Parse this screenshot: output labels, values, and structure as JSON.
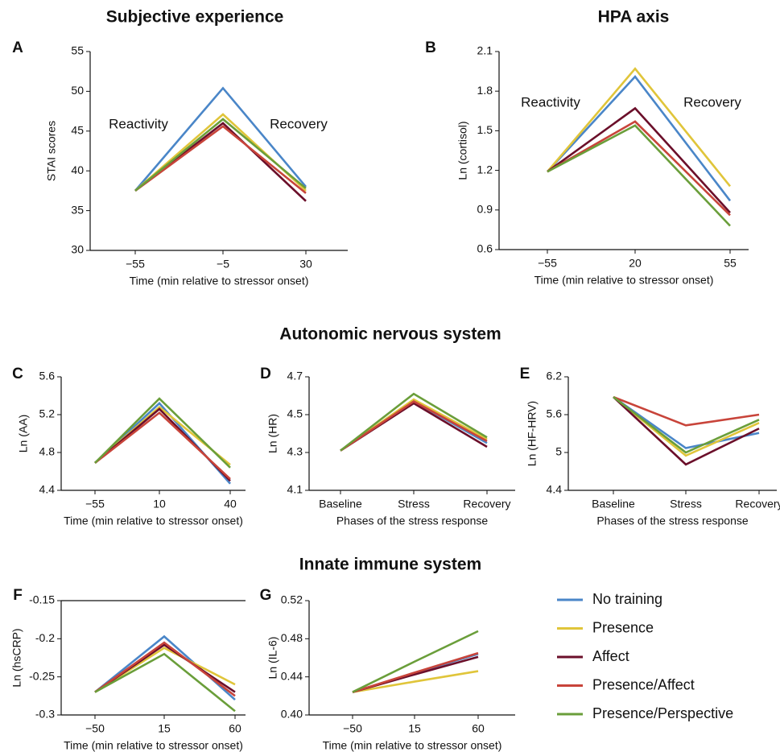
{
  "headings": [
    "Autonomic nervous system",
    "Innate immune system"
  ],
  "chart_data": [
    {
      "type": "line",
      "label": "A",
      "title": "Subjective experience",
      "xlabel": "Time (min relative to stressor onset)",
      "ylabel": "STAI scores",
      "annotations": [
        "Reactivity",
        "Recovery"
      ],
      "categories": [
        "−55",
        "−5",
        "30"
      ],
      "ylim": [
        30,
        55
      ],
      "yticks": [
        30,
        35,
        40,
        45,
        50,
        55
      ],
      "series": [
        {
          "name": "No training",
          "color": "#4a86c8",
          "values": [
            37.5,
            50.4,
            38.0
          ]
        },
        {
          "name": "Presence",
          "color": "#e0c53a",
          "values": [
            37.5,
            47.1,
            37.5
          ]
        },
        {
          "name": "Affect",
          "color": "#6b0f2a",
          "values": [
            37.5,
            46.0,
            36.2
          ]
        },
        {
          "name": "Presence/Affect",
          "color": "#c8443a",
          "values": [
            37.5,
            45.6,
            37.2
          ]
        },
        {
          "name": "Presence/Perspective",
          "color": "#6a9e3a",
          "values": [
            37.5,
            46.5,
            37.8
          ]
        }
      ]
    },
    {
      "type": "line",
      "label": "B",
      "title": "HPA axis",
      "xlabel": "Time (min relative to stressor onset)",
      "ylabel": "Ln (cortisol)",
      "annotations": [
        "Reactivity",
        "Recovery"
      ],
      "categories": [
        "−55",
        "20",
        "55"
      ],
      "ylim": [
        0.6,
        2.1
      ],
      "yticks": [
        0.6,
        0.9,
        1.2,
        1.5,
        1.8,
        2.1
      ],
      "series": [
        {
          "name": "No training",
          "color": "#4a86c8",
          "values": [
            1.19,
            1.91,
            0.97
          ]
        },
        {
          "name": "Presence",
          "color": "#e0c53a",
          "values": [
            1.19,
            1.97,
            1.08
          ]
        },
        {
          "name": "Affect",
          "color": "#6b0f2a",
          "values": [
            1.19,
            1.67,
            0.88
          ]
        },
        {
          "name": "Presence/Affect",
          "color": "#c8443a",
          "values": [
            1.19,
            1.57,
            0.86
          ]
        },
        {
          "name": "Presence/Perspective",
          "color": "#6a9e3a",
          "values": [
            1.19,
            1.54,
            0.78
          ]
        }
      ]
    },
    {
      "type": "line",
      "label": "C",
      "xlabel": "Time (min relative to stressor onset)",
      "ylabel": "Ln (AA)",
      "categories": [
        "−55",
        "10",
        "40"
      ],
      "ylim": [
        4.4,
        5.6
      ],
      "yticks": [
        4.4,
        4.8,
        5.2,
        5.6
      ],
      "series": [
        {
          "name": "No training",
          "color": "#4a86c8",
          "values": [
            4.69,
            5.32,
            4.47
          ]
        },
        {
          "name": "Presence",
          "color": "#e0c53a",
          "values": [
            4.69,
            5.28,
            4.67
          ]
        },
        {
          "name": "Affect",
          "color": "#6b0f2a",
          "values": [
            4.69,
            5.26,
            4.5
          ]
        },
        {
          "name": "Presence/Affect",
          "color": "#c8443a",
          "values": [
            4.69,
            5.22,
            4.52
          ]
        },
        {
          "name": "Presence/Perspective",
          "color": "#6a9e3a",
          "values": [
            4.69,
            5.37,
            4.64
          ]
        }
      ]
    },
    {
      "type": "line",
      "label": "D",
      "xlabel": "Phases of the stress response",
      "ylabel": "Ln (HR)",
      "categories": [
        "Baseline",
        "Stress",
        "Recovery"
      ],
      "ylim": [
        4.1,
        4.7
      ],
      "yticks": [
        4.1,
        4.3,
        4.5,
        4.7
      ],
      "series": [
        {
          "name": "No training",
          "color": "#4a86c8",
          "values": [
            4.31,
            4.57,
            4.35
          ]
        },
        {
          "name": "Presence",
          "color": "#e0c53a",
          "values": [
            4.31,
            4.58,
            4.37
          ]
        },
        {
          "name": "Affect",
          "color": "#6b0f2a",
          "values": [
            4.31,
            4.56,
            4.33
          ]
        },
        {
          "name": "Presence/Affect",
          "color": "#c8443a",
          "values": [
            4.31,
            4.57,
            4.36
          ]
        },
        {
          "name": "Presence/Perspective",
          "color": "#6a9e3a",
          "values": [
            4.31,
            4.61,
            4.38
          ]
        }
      ]
    },
    {
      "type": "line",
      "label": "E",
      "xlabel": "Phases of the stress response",
      "ylabel": "Ln (HF-HRV)",
      "categories": [
        "Baseline",
        "Stress",
        "Recovery"
      ],
      "ylim": [
        4.4,
        6.2
      ],
      "yticks": [
        4.4,
        5,
        5.6,
        6.2
      ],
      "series": [
        {
          "name": "No training",
          "color": "#4a86c8",
          "values": [
            5.88,
            5.07,
            5.31
          ]
        },
        {
          "name": "Presence",
          "color": "#e0c53a",
          "values": [
            5.88,
            4.95,
            5.47
          ]
        },
        {
          "name": "Affect",
          "color": "#6b0f2a",
          "values": [
            5.88,
            4.81,
            5.38
          ]
        },
        {
          "name": "Presence/Affect",
          "color": "#c8443a",
          "values": [
            5.88,
            5.43,
            5.6
          ]
        },
        {
          "name": "Presence/Perspective",
          "color": "#6a9e3a",
          "values": [
            5.88,
            5.0,
            5.52
          ]
        }
      ]
    },
    {
      "type": "line",
      "label": "F",
      "xlabel": "Time (min relative to stressor onset)",
      "ylabel": "Ln (hsCRP)",
      "categories": [
        "−50",
        "15",
        "60"
      ],
      "ylim": [
        -0.3,
        -0.15
      ],
      "yticks": [
        -0.3,
        -0.25,
        -0.2,
        -0.15
      ],
      "series": [
        {
          "name": "No training",
          "color": "#4a86c8",
          "values": [
            -0.27,
            -0.197,
            -0.28
          ]
        },
        {
          "name": "Presence",
          "color": "#e0c53a",
          "values": [
            -0.27,
            -0.212,
            -0.26
          ]
        },
        {
          "name": "Affect",
          "color": "#6b0f2a",
          "values": [
            -0.27,
            -0.208,
            -0.27
          ]
        },
        {
          "name": "Presence/Affect",
          "color": "#c8443a",
          "values": [
            -0.27,
            -0.205,
            -0.275
          ]
        },
        {
          "name": "Presence/Perspective",
          "color": "#6a9e3a",
          "values": [
            -0.27,
            -0.22,
            -0.295
          ]
        }
      ]
    },
    {
      "type": "line",
      "label": "G",
      "xlabel": "Time (min relative to stressor onset)",
      "ylabel": "Ln (IL-6)",
      "categories": [
        "−50",
        "15",
        "60"
      ],
      "ylim": [
        0.4,
        0.52
      ],
      "yticks": [
        {
          "value": 0.4,
          "label": "0.40"
        },
        0.44,
        0.48,
        0.52
      ],
      "series": [
        {
          "name": "No training",
          "color": "#4a86c8",
          "values": [
            0.424,
            0.444,
            0.464
          ]
        },
        {
          "name": "Presence",
          "color": "#e0c53a",
          "values": [
            0.424,
            0.435,
            0.446
          ]
        },
        {
          "name": "Affect",
          "color": "#6b0f2a",
          "values": [
            0.424,
            0.4425,
            0.461
          ]
        },
        {
          "name": "Presence/Affect",
          "color": "#c8443a",
          "values": [
            0.424,
            0.4445,
            0.465
          ]
        },
        {
          "name": "Presence/Perspective",
          "color": "#6a9e3a",
          "values": [
            0.424,
            0.456,
            0.488
          ]
        }
      ]
    }
  ]
}
